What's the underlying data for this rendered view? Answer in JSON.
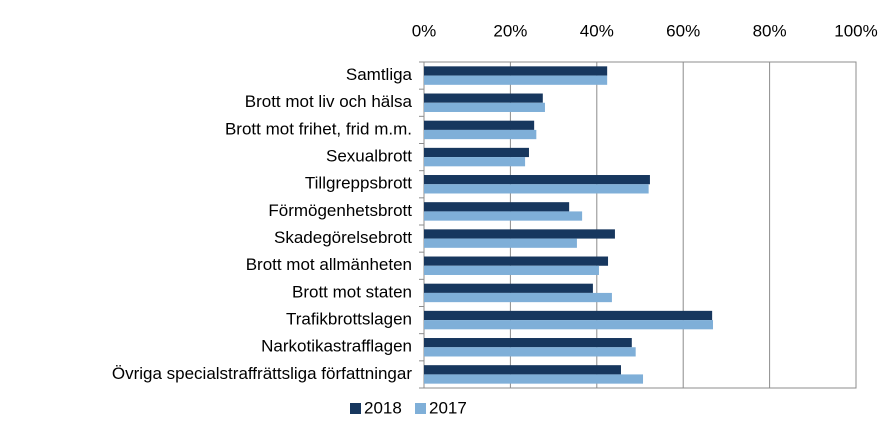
{
  "chart_data": {
    "type": "barh",
    "categories": [
      "Samtliga",
      "Brott mot liv och hälsa",
      "Brott mot frihet, frid m.m.",
      "Sexualbrott",
      "Tillgreppsbrott",
      "Förmögenhetsbrott",
      "Skadegörelsebrott",
      "Brott mot allmänheten",
      "Brott mot staten",
      "Trafikbrottslagen",
      "Narkotikastrafflagen",
      "Övriga specialstraffrättsliga författningar"
    ],
    "series": [
      {
        "name": "2018",
        "color": "#17375e",
        "values": [
          42.4,
          27.5,
          25.5,
          24.3,
          52.3,
          33.6,
          44.2,
          42.6,
          39.1,
          66.7,
          48.1,
          45.6
        ]
      },
      {
        "name": "2017",
        "color": "#7fafd8",
        "values": [
          42.4,
          28,
          26,
          23.4,
          52,
          36.6,
          35.4,
          40.5,
          43.5,
          66.9,
          49,
          50.7
        ]
      }
    ],
    "xlim": [
      0,
      100
    ],
    "xticks": [
      {
        "value": 0,
        "label": "0%"
      },
      {
        "value": 20,
        "label": "20%"
      },
      {
        "value": 40,
        "label": "40%"
      },
      {
        "value": 60,
        "label": "60%"
      },
      {
        "value": 80,
        "label": "80%"
      },
      {
        "value": 100,
        "label": "100%"
      }
    ],
    "grid": true,
    "legend": "bottom"
  }
}
